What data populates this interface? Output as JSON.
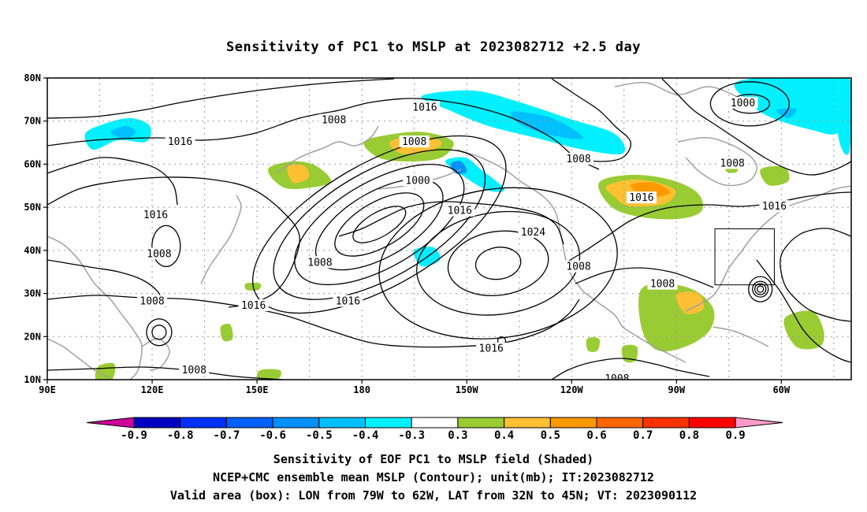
{
  "title": "Sensitivity of PC1 to MSLP at 2023082712 +2.5 day",
  "lat_labels": [
    "80N",
    "70N",
    "60N",
    "50N",
    "40N",
    "30N",
    "20N",
    "10N"
  ],
  "lon_labels": [
    "90E",
    "120E",
    "150E",
    "180",
    "150W",
    "120W",
    "90W",
    "60W"
  ],
  "contour_labels": [
    {
      "text": "1016",
      "lon": -162,
      "lat": 73
    },
    {
      "text": "1008",
      "lon": 172,
      "lat": 70
    },
    {
      "text": "1016",
      "lon": 128,
      "lat": 65
    },
    {
      "text": "1008",
      "lon": -165,
      "lat": 65
    },
    {
      "text": "1000",
      "lon": -164,
      "lat": 56
    },
    {
      "text": "1008",
      "lon": -118,
      "lat": 61
    },
    {
      "text": "1000",
      "lon": -71,
      "lat": 74
    },
    {
      "text": "1008",
      "lon": -74,
      "lat": 60
    },
    {
      "text": "1016",
      "lon": -100,
      "lat": 52
    },
    {
      "text": "1016",
      "lon": -62,
      "lat": 50
    },
    {
      "text": "1016",
      "lon": 121,
      "lat": 48
    },
    {
      "text": "1016",
      "lon": -152,
      "lat": 49
    },
    {
      "text": "1024",
      "lon": -131,
      "lat": 44
    },
    {
      "text": "1008",
      "lon": 122,
      "lat": 39
    },
    {
      "text": "1008",
      "lon": 168,
      "lat": 37
    },
    {
      "text": "1008",
      "lon": -118,
      "lat": 36
    },
    {
      "text": "1008",
      "lon": -94,
      "lat": 32
    },
    {
      "text": "1016",
      "lon": 149,
      "lat": 27
    },
    {
      "text": "1016",
      "lon": 176,
      "lat": 28
    },
    {
      "text": "1008",
      "lon": 120,
      "lat": 28
    },
    {
      "text": "1016",
      "lon": -143,
      "lat": 17
    },
    {
      "text": "1008",
      "lon": 132,
      "lat": 12
    },
    {
      "text": "1008",
      "lon": -107,
      "lat": 10
    }
  ],
  "colorbar": {
    "labels": [
      "-0.9",
      "-0.8",
      "-0.7",
      "-0.6",
      "-0.5",
      "-0.4",
      "-0.3",
      "0.3",
      "0.4",
      "0.5",
      "0.6",
      "0.7",
      "0.8",
      "0.9"
    ],
    "colors": [
      "#0000c0",
      "#0030ff",
      "#0060ff",
      "#0090ff",
      "#00c0ff",
      "#00f0ff",
      "#ffffff",
      "#99cc33",
      "#ffc033",
      "#ff9900",
      "#ff6600",
      "#ff3300",
      "#ff0000"
    ],
    "left_arrow_color": "#cc0099",
    "right_arrow_color": "#ff99cc"
  },
  "colors": {
    "contour": "#000000",
    "coastline": "#a0a0a0",
    "grid": "#999999",
    "box": "#000000"
  },
  "valid_box": {
    "lon_min": -79,
    "lon_max": -62,
    "lat_min": 32,
    "lat_max": 45
  },
  "captions": [
    "Sensitivity of EOF PC1 to MSLP field (Shaded)",
    "NCEP+CMC ensemble mean MSLP (Contour); unit(mb); IT:2023082712",
    "Valid area (box): LON from 79W to 62W, LAT from 32N to 45N; VT: 2023090112"
  ]
}
